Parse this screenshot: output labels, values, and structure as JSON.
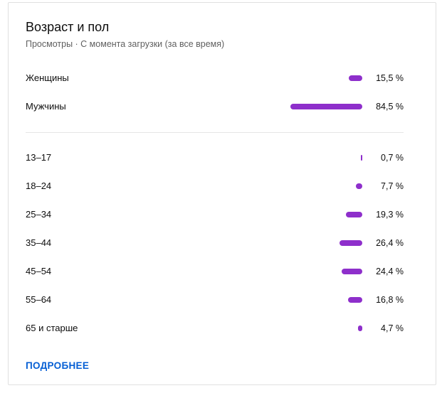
{
  "card": {
    "title": "Возраст и пол",
    "subtitle": "Просмотры · С момента загрузки (за все время)",
    "more_link": "ПОДРОБНЕЕ"
  },
  "colors": {
    "bar": "#8e2fcb",
    "link": "#065fd4"
  },
  "chart_data": [
    {
      "type": "bar",
      "orientation": "horizontal",
      "categories": [
        "Женщины",
        "Мужчины"
      ],
      "values": [
        15.5,
        84.5
      ],
      "value_labels": [
        "15,5 %",
        "84,5 %"
      ]
    },
    {
      "type": "bar",
      "orientation": "horizontal",
      "categories": [
        "13–17",
        "18–24",
        "25–34",
        "35–44",
        "45–54",
        "55–64",
        "65 и старше"
      ],
      "values": [
        0.7,
        7.7,
        19.3,
        26.4,
        24.4,
        16.8,
        4.7
      ],
      "value_labels": [
        "0,7 %",
        "7,7 %",
        "19,3 %",
        "26,4 %",
        "24,4 %",
        "16,8 %",
        "4,7 %"
      ]
    }
  ]
}
